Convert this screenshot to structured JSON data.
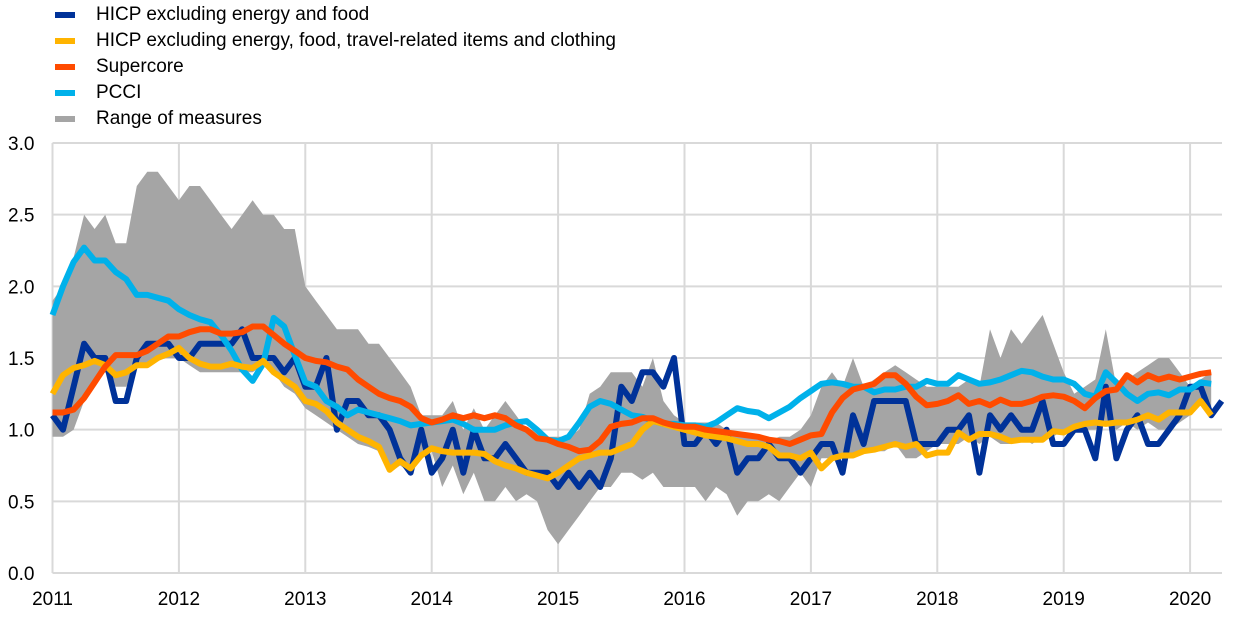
{
  "chart_data": {
    "type": "line",
    "title": "",
    "xlabel": "",
    "ylabel": "",
    "ylim": [
      0.0,
      3.0
    ],
    "yticks": [
      "0.0",
      "0.5",
      "1.0",
      "1.5",
      "2.0",
      "2.5",
      "3.0"
    ],
    "xticks": [
      "2011",
      "2012",
      "2013",
      "2014",
      "2015",
      "2016",
      "2017",
      "2018",
      "2019",
      "2020"
    ],
    "x_start": "2011-01",
    "frequency": "monthly",
    "grid": true,
    "legend_position": "top-left",
    "series": [
      {
        "name": "HICP excluding energy and food",
        "color": "#003299",
        "values": [
          1.1,
          1.0,
          1.3,
          1.6,
          1.5,
          1.5,
          1.2,
          1.2,
          1.5,
          1.6,
          1.6,
          1.6,
          1.5,
          1.5,
          1.6,
          1.6,
          1.6,
          1.6,
          1.7,
          1.5,
          1.5,
          1.5,
          1.4,
          1.5,
          1.3,
          1.3,
          1.5,
          1.0,
          1.2,
          1.2,
          1.1,
          1.1,
          1.0,
          0.8,
          0.7,
          1.0,
          0.7,
          0.8,
          1.0,
          0.7,
          1.0,
          0.8,
          0.8,
          0.9,
          0.8,
          0.7,
          0.7,
          0.7,
          0.6,
          0.7,
          0.6,
          0.7,
          0.6,
          0.8,
          1.3,
          1.2,
          1.4,
          1.4,
          1.3,
          1.5,
          0.9,
          0.9,
          1.0,
          0.9,
          1.0,
          0.7,
          0.8,
          0.8,
          0.9,
          0.8,
          0.8,
          0.7,
          0.8,
          0.9,
          0.9,
          0.7,
          1.1,
          0.9,
          1.2,
          1.2,
          1.2,
          1.2,
          0.9,
          0.9,
          0.9,
          1.0,
          1.0,
          1.1,
          0.7,
          1.1,
          1.0,
          1.1,
          1.0,
          1.0,
          1.2,
          0.9,
          0.9,
          1.0,
          1.0,
          0.8,
          1.3,
          0.8,
          1.0,
          1.1,
          0.9,
          0.9,
          1.0,
          1.1,
          1.3,
          1.3,
          1.1,
          1.2
        ]
      },
      {
        "name": "HICP excluding energy, food, travel-related items and clothing",
        "color": "#FFB400",
        "values": [
          1.25,
          1.38,
          1.43,
          1.45,
          1.48,
          1.45,
          1.38,
          1.4,
          1.45,
          1.45,
          1.5,
          1.53,
          1.57,
          1.5,
          1.46,
          1.44,
          1.44,
          1.46,
          1.44,
          1.43,
          1.48,
          1.4,
          1.35,
          1.3,
          1.2,
          1.18,
          1.13,
          1.05,
          1.0,
          0.95,
          0.92,
          0.88,
          0.72,
          0.78,
          0.73,
          0.82,
          0.87,
          0.85,
          0.84,
          0.84,
          0.84,
          0.83,
          0.78,
          0.75,
          0.73,
          0.7,
          0.68,
          0.66,
          0.7,
          0.75,
          0.8,
          0.82,
          0.84,
          0.84,
          0.87,
          0.9,
          1.0,
          1.06,
          1.04,
          1.02,
          1.0,
          0.98,
          0.96,
          0.95,
          0.94,
          0.92,
          0.9,
          0.9,
          0.88,
          0.82,
          0.82,
          0.8,
          0.84,
          0.73,
          0.8,
          0.82,
          0.82,
          0.85,
          0.86,
          0.88,
          0.9,
          0.88,
          0.9,
          0.82,
          0.84,
          0.84,
          0.98,
          0.93,
          0.97,
          0.97,
          0.95,
          0.92,
          0.93,
          0.93,
          0.93,
          0.99,
          0.98,
          1.02,
          1.04,
          1.05,
          1.04,
          1.05,
          1.05,
          1.07,
          1.1,
          1.07,
          1.12,
          1.12,
          1.12,
          1.2,
          1.1
        ]
      },
      {
        "name": "Supercore",
        "color": "#FF4B00",
        "values": [
          1.12,
          1.12,
          1.14,
          1.22,
          1.33,
          1.44,
          1.52,
          1.52,
          1.52,
          1.55,
          1.6,
          1.65,
          1.65,
          1.68,
          1.7,
          1.7,
          1.67,
          1.67,
          1.68,
          1.72,
          1.72,
          1.66,
          1.6,
          1.55,
          1.5,
          1.48,
          1.47,
          1.44,
          1.42,
          1.35,
          1.3,
          1.25,
          1.22,
          1.2,
          1.16,
          1.08,
          1.05,
          1.07,
          1.1,
          1.08,
          1.1,
          1.08,
          1.1,
          1.08,
          1.03,
          1.0,
          0.94,
          0.93,
          0.9,
          0.88,
          0.85,
          0.86,
          0.92,
          1.02,
          1.04,
          1.05,
          1.08,
          1.08,
          1.05,
          1.03,
          1.02,
          1.02,
          1.0,
          0.99,
          0.98,
          0.97,
          0.96,
          0.95,
          0.93,
          0.92,
          0.9,
          0.93,
          0.96,
          0.97,
          1.12,
          1.22,
          1.28,
          1.3,
          1.32,
          1.38,
          1.38,
          1.32,
          1.23,
          1.17,
          1.18,
          1.2,
          1.24,
          1.18,
          1.2,
          1.17,
          1.21,
          1.18,
          1.18,
          1.2,
          1.23,
          1.24,
          1.23,
          1.2,
          1.15,
          1.22,
          1.27,
          1.28,
          1.38,
          1.33,
          1.38,
          1.35,
          1.37,
          1.35,
          1.37,
          1.39,
          1.4
        ]
      },
      {
        "name": "PCCI",
        "color": "#00B1EA",
        "values": [
          1.8,
          2.0,
          2.17,
          2.27,
          2.18,
          2.18,
          2.1,
          2.05,
          1.94,
          1.94,
          1.92,
          1.9,
          1.84,
          1.8,
          1.77,
          1.75,
          1.66,
          1.55,
          1.42,
          1.34,
          1.46,
          1.78,
          1.72,
          1.52,
          1.33,
          1.3,
          1.2,
          1.16,
          1.1,
          1.14,
          1.12,
          1.1,
          1.08,
          1.06,
          1.03,
          1.04,
          1.05,
          1.06,
          1.07,
          1.04,
          1.0,
          1.0,
          1.0,
          1.03,
          1.05,
          1.06,
          1.0,
          0.93,
          0.92,
          0.95,
          1.05,
          1.16,
          1.2,
          1.18,
          1.14,
          1.1,
          1.09,
          1.06,
          1.04,
          1.04,
          1.03,
          1.03,
          1.02,
          1.05,
          1.1,
          1.15,
          1.13,
          1.12,
          1.08,
          1.12,
          1.16,
          1.22,
          1.27,
          1.32,
          1.33,
          1.32,
          1.3,
          1.3,
          1.26,
          1.28,
          1.28,
          1.3,
          1.3,
          1.34,
          1.32,
          1.32,
          1.38,
          1.35,
          1.32,
          1.33,
          1.35,
          1.38,
          1.41,
          1.4,
          1.37,
          1.35,
          1.35,
          1.32,
          1.25,
          1.23,
          1.4,
          1.33,
          1.25,
          1.2,
          1.25,
          1.26,
          1.24,
          1.28,
          1.28,
          1.33,
          1.32
        ]
      },
      {
        "name": "Range of measures",
        "color": "#A5A5A5",
        "upper": [
          1.9,
          2.0,
          2.2,
          2.5,
          2.4,
          2.5,
          2.3,
          2.3,
          2.7,
          2.8,
          2.8,
          2.7,
          2.6,
          2.7,
          2.7,
          2.6,
          2.5,
          2.4,
          2.5,
          2.6,
          2.5,
          2.5,
          2.4,
          2.4,
          2.0,
          1.9,
          1.8,
          1.7,
          1.7,
          1.7,
          1.6,
          1.6,
          1.5,
          1.4,
          1.3,
          1.1,
          1.1,
          1.1,
          1.2,
          1.0,
          1.15,
          1.0,
          1.1,
          1.2,
          1.1,
          1.0,
          1.0,
          0.95,
          0.95,
          0.95,
          1.0,
          1.25,
          1.3,
          1.4,
          1.4,
          1.4,
          1.3,
          1.5,
          1.2,
          1.1,
          1.05,
          1.05,
          1.05,
          1.05,
          1.0,
          0.98,
          0.95,
          0.95,
          0.92,
          0.95,
          0.95,
          1.0,
          1.1,
          1.3,
          1.4,
          1.3,
          1.5,
          1.3,
          1.35,
          1.4,
          1.45,
          1.4,
          1.35,
          1.3,
          1.3,
          1.3,
          1.3,
          1.35,
          1.3,
          1.7,
          1.5,
          1.7,
          1.6,
          1.7,
          1.8,
          1.6,
          1.4,
          1.25,
          1.3,
          1.35,
          1.7,
          1.3,
          1.35,
          1.4,
          1.45,
          1.5,
          1.5,
          1.4,
          1.3,
          1.35,
          1.4
        ],
        "lower": [
          0.95,
          0.95,
          1.0,
          1.2,
          1.35,
          1.4,
          1.3,
          1.3,
          1.45,
          1.45,
          1.5,
          1.5,
          1.5,
          1.45,
          1.4,
          1.4,
          1.4,
          1.4,
          1.4,
          1.4,
          1.45,
          1.4,
          1.3,
          1.25,
          1.15,
          1.1,
          1.05,
          1.0,
          0.95,
          0.9,
          0.88,
          0.85,
          0.7,
          0.75,
          0.7,
          0.8,
          0.85,
          0.6,
          0.75,
          0.55,
          0.7,
          0.5,
          0.5,
          0.6,
          0.5,
          0.55,
          0.5,
          0.3,
          0.2,
          0.3,
          0.4,
          0.5,
          0.6,
          0.6,
          0.7,
          0.7,
          0.65,
          0.7,
          0.6,
          0.6,
          0.6,
          0.6,
          0.5,
          0.6,
          0.55,
          0.4,
          0.5,
          0.5,
          0.55,
          0.5,
          0.6,
          0.7,
          0.6,
          0.8,
          0.8,
          0.8,
          0.8,
          0.85,
          0.85,
          0.85,
          0.9,
          0.8,
          0.8,
          0.85,
          0.9,
          0.9,
          0.9,
          0.95,
          0.9,
          0.95,
          0.9,
          0.9,
          0.95,
          0.9,
          0.95,
          0.95,
          1.0,
          1.0,
          1.0,
          1.0,
          1.05,
          1.0,
          1.05,
          1.0,
          1.05,
          1.0,
          1.0,
          1.05,
          1.1,
          1.2,
          1.1
        ]
      }
    ]
  }
}
